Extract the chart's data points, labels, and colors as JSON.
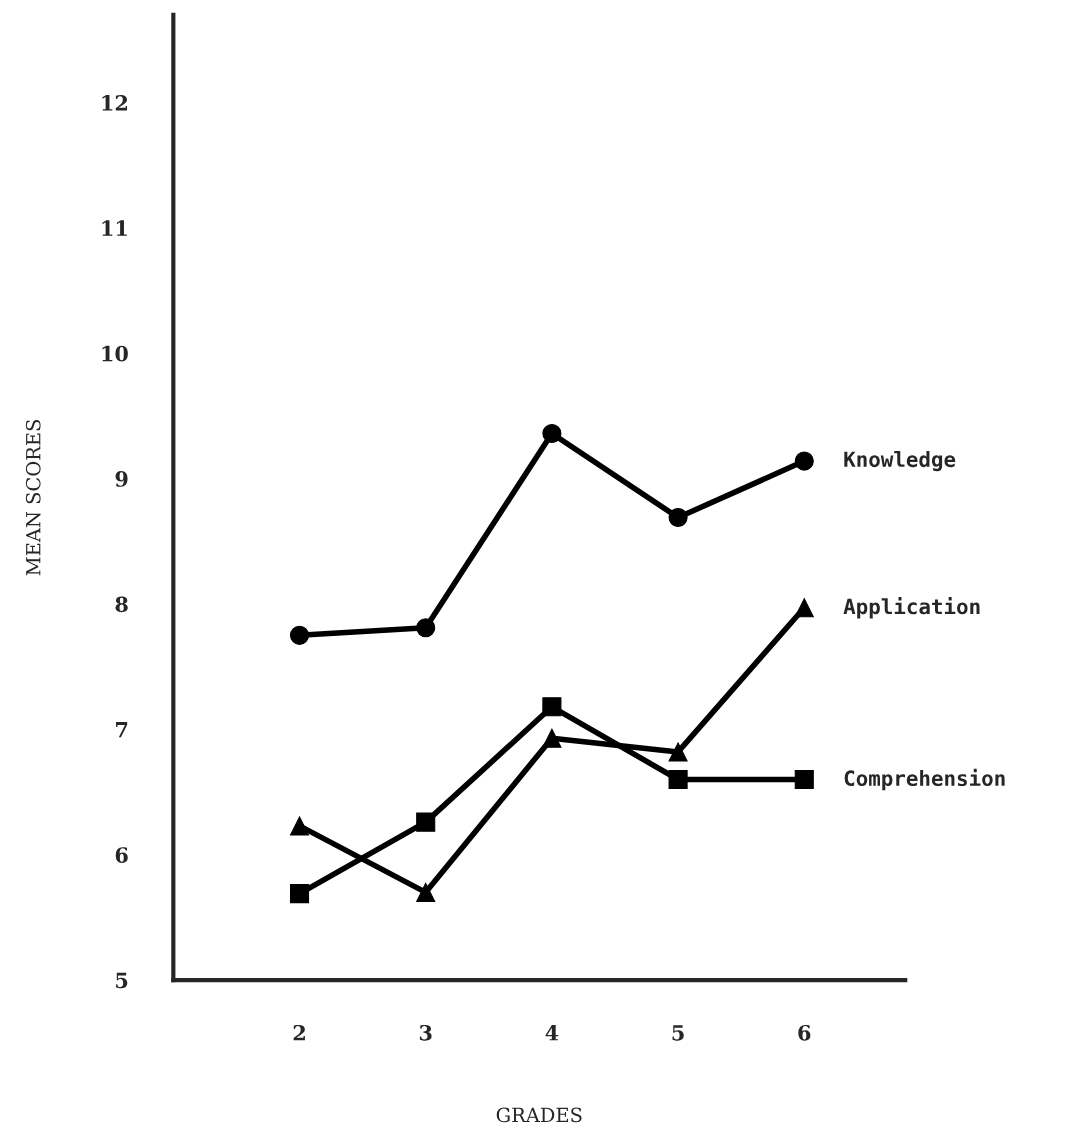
{
  "chart_data": {
    "type": "line",
    "xlabel": "GRADES",
    "ylabel": "MEAN SCORES",
    "x": [
      2,
      3,
      4,
      5,
      6
    ],
    "xlim": [
      1,
      6.8
    ],
    "xticks": [
      2,
      3,
      4,
      5,
      6
    ],
    "ylim": [
      5,
      12.7
    ],
    "yticks": [
      5,
      6,
      7,
      8,
      9,
      10,
      11,
      12
    ],
    "grid": false,
    "legend": false,
    "line_style": "solid",
    "series": [
      {
        "name": "Knowledge",
        "color": "#000000",
        "marker": "circle",
        "values": [
          7.75,
          7.81,
          9.36,
          8.69,
          9.14
        ]
      },
      {
        "name": "Application",
        "color": "#000000",
        "marker": "triangle",
        "values": [
          6.23,
          5.7,
          6.93,
          6.82,
          7.97
        ]
      },
      {
        "name": "Comprehension",
        "color": "#000000",
        "marker": "square",
        "values": [
          5.69,
          6.26,
          7.18,
          6.6,
          6.6
        ]
      }
    ]
  }
}
